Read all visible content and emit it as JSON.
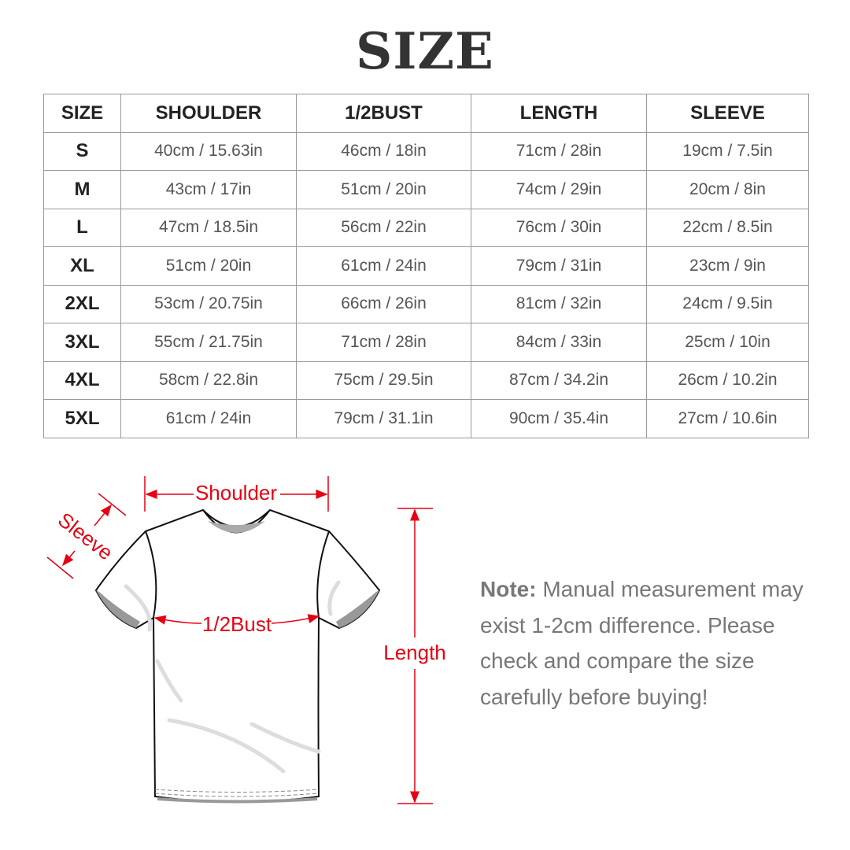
{
  "title": "SIZE",
  "table": {
    "headers": [
      "SIZE",
      "SHOULDER",
      "1/2BUST",
      "LENGTH",
      "SLEEVE"
    ],
    "rows": [
      [
        "S",
        "40cm / 15.63in",
        "46cm / 18in",
        "71cm / 28in",
        "19cm / 7.5in"
      ],
      [
        "M",
        "43cm / 17in",
        "51cm / 20in",
        "74cm / 29in",
        "20cm / 8in"
      ],
      [
        "L",
        "47cm / 18.5in",
        "56cm / 22in",
        "76cm / 30in",
        "22cm / 8.5in"
      ],
      [
        "XL",
        "51cm / 20in",
        "61cm / 24in",
        "79cm / 31in",
        "23cm / 9in"
      ],
      [
        "2XL",
        "53cm / 20.75in",
        "66cm / 26in",
        "81cm / 32in",
        "24cm / 9.5in"
      ],
      [
        "3XL",
        "55cm / 21.75in",
        "71cm / 28in",
        "84cm / 33in",
        "25cm / 10in"
      ],
      [
        "4XL",
        "58cm / 22.8in",
        "75cm / 29.5in",
        "87cm / 34.2in",
        "26cm / 10.2in"
      ],
      [
        "5XL",
        "61cm / 24in",
        "79cm / 31.1in",
        "90cm / 35.4in",
        "27cm / 10.6in"
      ]
    ]
  },
  "diagram": {
    "labels": {
      "shoulder": "Shoulder",
      "sleeve": "Sleeve",
      "bust": "1/2Bust",
      "length": "Length"
    },
    "accent_color": "#e60012"
  },
  "note": {
    "label": "Note:",
    "text": " Manual measurement may exist 1-2cm difference. Please check and compare the size carefully before buying!"
  }
}
